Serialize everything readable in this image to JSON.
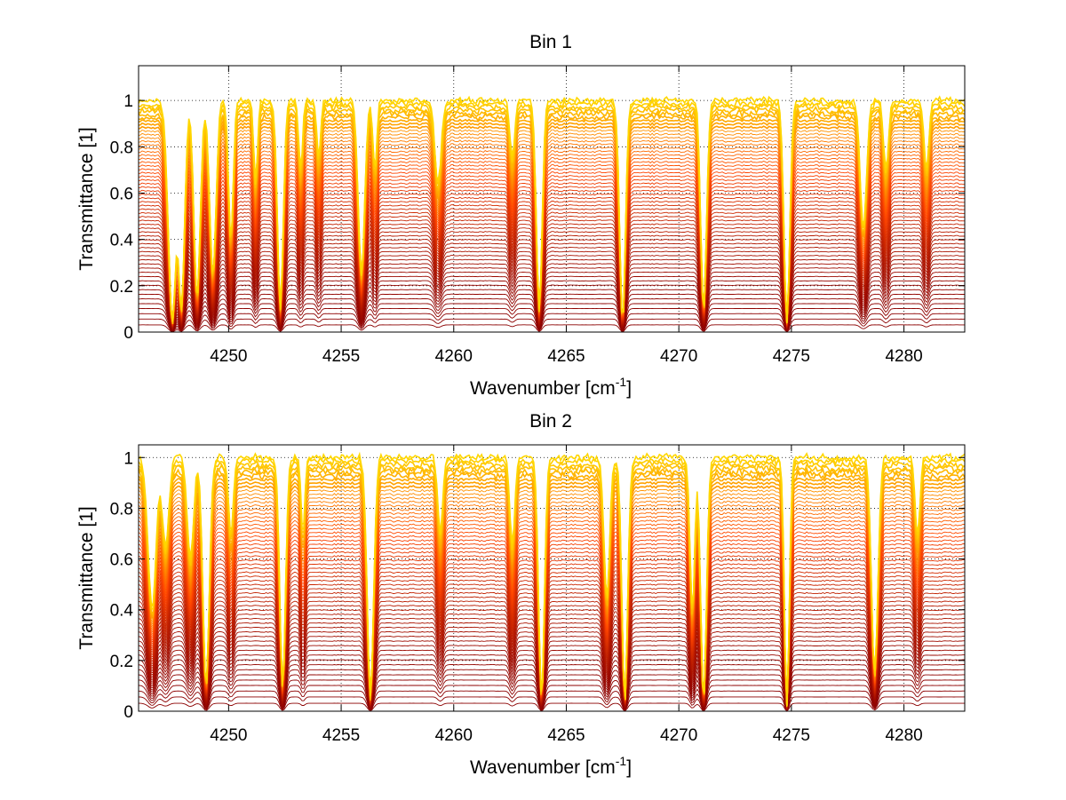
{
  "chart_data": [
    {
      "type": "line",
      "title": "Bin 1",
      "xlabel": "Wavenumber [cm",
      "xlabel_sup": "-1",
      "xlabel_end": "]",
      "ylabel": "Transmittance [1]",
      "xlim": [
        4246,
        4282.7
      ],
      "ylim": [
        0,
        1.15
      ],
      "xticks": [
        4250,
        4255,
        4260,
        4265,
        4270,
        4275,
        4280
      ],
      "yticks": [
        0,
        0.2,
        0.4,
        0.6,
        0.8,
        1
      ],
      "grid": true,
      "series_count": 60,
      "line_colormap": [
        "#8b0000",
        "#ff4500",
        "#ffd700"
      ],
      "lines": [
        {
          "x": 4247.5,
          "depth": 0.95,
          "width": 0.25
        },
        {
          "x": 4247.9,
          "depth": 0.9,
          "width": 0.2
        },
        {
          "x": 4248.6,
          "depth": 0.85,
          "width": 0.2
        },
        {
          "x": 4249.3,
          "depth": 0.75,
          "width": 0.2
        },
        {
          "x": 4250.1,
          "depth": 0.6,
          "width": 0.15
        },
        {
          "x": 4251.2,
          "depth": 0.35,
          "width": 0.12
        },
        {
          "x": 4252.3,
          "depth": 0.9,
          "width": 0.18
        },
        {
          "x": 4253.2,
          "depth": 0.3,
          "width": 0.12
        },
        {
          "x": 4254.0,
          "depth": 0.25,
          "width": 0.12
        },
        {
          "x": 4255.9,
          "depth": 0.75,
          "width": 0.2
        },
        {
          "x": 4256.5,
          "depth": 0.3,
          "width": 0.12
        },
        {
          "x": 4259.3,
          "depth": 0.35,
          "width": 0.2
        },
        {
          "x": 4262.6,
          "depth": 0.25,
          "width": 0.15
        },
        {
          "x": 4263.8,
          "depth": 0.9,
          "width": 0.18
        },
        {
          "x": 4267.5,
          "depth": 0.95,
          "width": 0.18
        },
        {
          "x": 4271.1,
          "depth": 0.9,
          "width": 0.18
        },
        {
          "x": 4274.8,
          "depth": 0.95,
          "width": 0.18
        },
        {
          "x": 4278.2,
          "depth": 0.55,
          "width": 0.2
        },
        {
          "x": 4279.2,
          "depth": 0.3,
          "width": 0.15
        },
        {
          "x": 4281.0,
          "depth": 0.3,
          "width": 0.15
        }
      ]
    },
    {
      "type": "line",
      "title": "Bin 2",
      "xlabel": "Wavenumber [cm",
      "xlabel_sup": "-1",
      "xlabel_end": "]",
      "ylabel": "Transmittance [1]",
      "xlim": [
        4246,
        4282.7
      ],
      "ylim": [
        0,
        1.05
      ],
      "xticks": [
        4250,
        4255,
        4260,
        4265,
        4270,
        4275,
        4280
      ],
      "yticks": [
        0,
        0.2,
        0.4,
        0.6,
        0.8,
        1
      ],
      "grid": true,
      "series_count": 60,
      "line_colormap": [
        "#8b0000",
        "#ff4500",
        "#ffd700"
      ],
      "lines": [
        {
          "x": 4246.6,
          "depth": 0.6,
          "width": 0.25
        },
        {
          "x": 4247.2,
          "depth": 0.35,
          "width": 0.2
        },
        {
          "x": 4248.3,
          "depth": 0.4,
          "width": 0.2
        },
        {
          "x": 4249.0,
          "depth": 0.9,
          "width": 0.2
        },
        {
          "x": 4250.1,
          "depth": 0.3,
          "width": 0.15
        },
        {
          "x": 4252.4,
          "depth": 0.9,
          "width": 0.18
        },
        {
          "x": 4253.3,
          "depth": 0.3,
          "width": 0.12
        },
        {
          "x": 4256.3,
          "depth": 0.95,
          "width": 0.2
        },
        {
          "x": 4259.4,
          "depth": 0.3,
          "width": 0.15
        },
        {
          "x": 4262.6,
          "depth": 0.35,
          "width": 0.15
        },
        {
          "x": 4263.9,
          "depth": 0.95,
          "width": 0.18
        },
        {
          "x": 4266.8,
          "depth": 0.55,
          "width": 0.18
        },
        {
          "x": 4267.6,
          "depth": 0.95,
          "width": 0.18
        },
        {
          "x": 4270.6,
          "depth": 0.6,
          "width": 0.15
        },
        {
          "x": 4271.1,
          "depth": 0.95,
          "width": 0.18
        },
        {
          "x": 4274.8,
          "depth": 0.98,
          "width": 0.15
        },
        {
          "x": 4278.7,
          "depth": 0.85,
          "width": 0.2
        },
        {
          "x": 4280.6,
          "depth": 0.3,
          "width": 0.15
        }
      ]
    }
  ]
}
